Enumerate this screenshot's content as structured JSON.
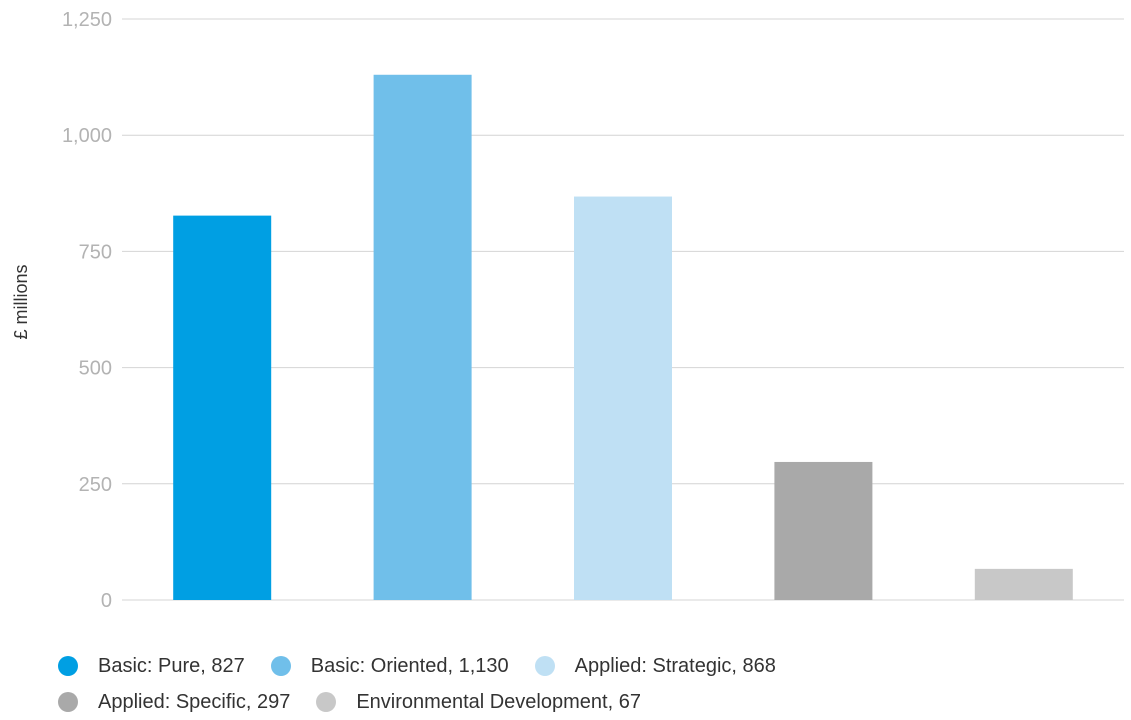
{
  "chart_data": {
    "type": "bar",
    "categories": [
      "Basic: Pure",
      "Basic: Oriented",
      "Applied: Strategic",
      "Applied: Specific",
      "Environmental Development"
    ],
    "values": [
      827,
      1130,
      868,
      297,
      67
    ],
    "colors": [
      "#009fe3",
      "#70bfea",
      "#bfe0f4",
      "#a9a9a9",
      "#c8c8c8"
    ],
    "title": "",
    "xlabel": "",
    "ylabel": "£ millions",
    "ylim": [
      0,
      1250
    ],
    "yticks": [
      0,
      250,
      500,
      750,
      1000,
      1250
    ],
    "ytick_labels": [
      "0",
      "250",
      "500",
      "750",
      "1,000",
      "1,250"
    ],
    "grid": true,
    "legend_position": "bottom",
    "legend": [
      {
        "label": "Basic: Pure, 827",
        "color": "#009fe3"
      },
      {
        "label": "Basic: Oriented, 1,130",
        "color": "#70bfea"
      },
      {
        "label": "Applied: Strategic, 868",
        "color": "#bfe0f4"
      },
      {
        "label": "Applied: Specific, 297",
        "color": "#a9a9a9"
      },
      {
        "label": "Environmental Development, 67",
        "color": "#c8c8c8"
      }
    ]
  }
}
